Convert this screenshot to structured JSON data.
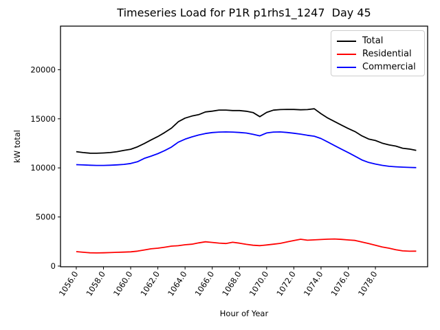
{
  "chart_data": {
    "type": "line",
    "title": "Timeseries Load for P1R p1rhs1_1247  Day 45",
    "xlabel": "Hour of Year",
    "ylabel": "kW total",
    "grid": false,
    "legend_position": "upper right",
    "xlim": [
      1054.84,
      1081.84
    ],
    "ylim": [
      -70,
      24440
    ],
    "x_ticks": [
      1056,
      1058,
      1060,
      1062,
      1064,
      1066,
      1068,
      1070,
      1072,
      1074,
      1076,
      1078
    ],
    "x_tick_labels": [
      "1056.0",
      "1058.0",
      "1060.0",
      "1062.0",
      "1064.0",
      "1066.0",
      "1068.0",
      "1070.0",
      "1072.0",
      "1074.0",
      "1076.0",
      "1078.0"
    ],
    "x_tick_rotation_deg": 57,
    "y_ticks": [
      0,
      5000,
      10000,
      15000,
      20000
    ],
    "y_tick_labels": [
      "0",
      "5000",
      "10000",
      "15000",
      "20000"
    ],
    "x_start": 1056.0,
    "x_step": 0.5,
    "series": [
      {
        "name": "Total",
        "color": "#000000",
        "values": [
          11650,
          11560,
          11500,
          11490,
          11520,
          11560,
          11650,
          11780,
          11900,
          12140,
          12480,
          12840,
          13190,
          13600,
          14050,
          14700,
          15070,
          15280,
          15420,
          15700,
          15780,
          15890,
          15890,
          15840,
          15840,
          15770,
          15640,
          15220,
          15650,
          15880,
          15940,
          15960,
          15950,
          15920,
          15940,
          16020,
          15520,
          15080,
          14720,
          14360,
          14010,
          13700,
          13260,
          12940,
          12790,
          12520,
          12340,
          12220,
          12000,
          11920,
          11780
        ]
      },
      {
        "name": "Residential",
        "color": "#ff0000",
        "values": [
          1470,
          1410,
          1350,
          1340,
          1350,
          1370,
          1400,
          1420,
          1450,
          1520,
          1640,
          1760,
          1820,
          1920,
          2030,
          2070,
          2170,
          2230,
          2360,
          2470,
          2410,
          2340,
          2300,
          2420,
          2330,
          2210,
          2120,
          2080,
          2150,
          2230,
          2310,
          2460,
          2600,
          2730,
          2630,
          2670,
          2700,
          2740,
          2760,
          2720,
          2660,
          2610,
          2450,
          2290,
          2120,
          1950,
          1820,
          1670,
          1550,
          1510,
          1520
        ]
      },
      {
        "name": "Commercial",
        "color": "#0000ff",
        "values": [
          10330,
          10300,
          10270,
          10250,
          10250,
          10270,
          10310,
          10360,
          10450,
          10620,
          10970,
          11200,
          11450,
          11760,
          12120,
          12620,
          12930,
          13160,
          13350,
          13500,
          13600,
          13650,
          13660,
          13650,
          13610,
          13550,
          13420,
          13260,
          13560,
          13650,
          13660,
          13610,
          13530,
          13440,
          13320,
          13230,
          12990,
          12630,
          12270,
          11910,
          11560,
          11190,
          10810,
          10550,
          10390,
          10260,
          10160,
          10110,
          10080,
          10050,
          10030
        ]
      }
    ]
  }
}
